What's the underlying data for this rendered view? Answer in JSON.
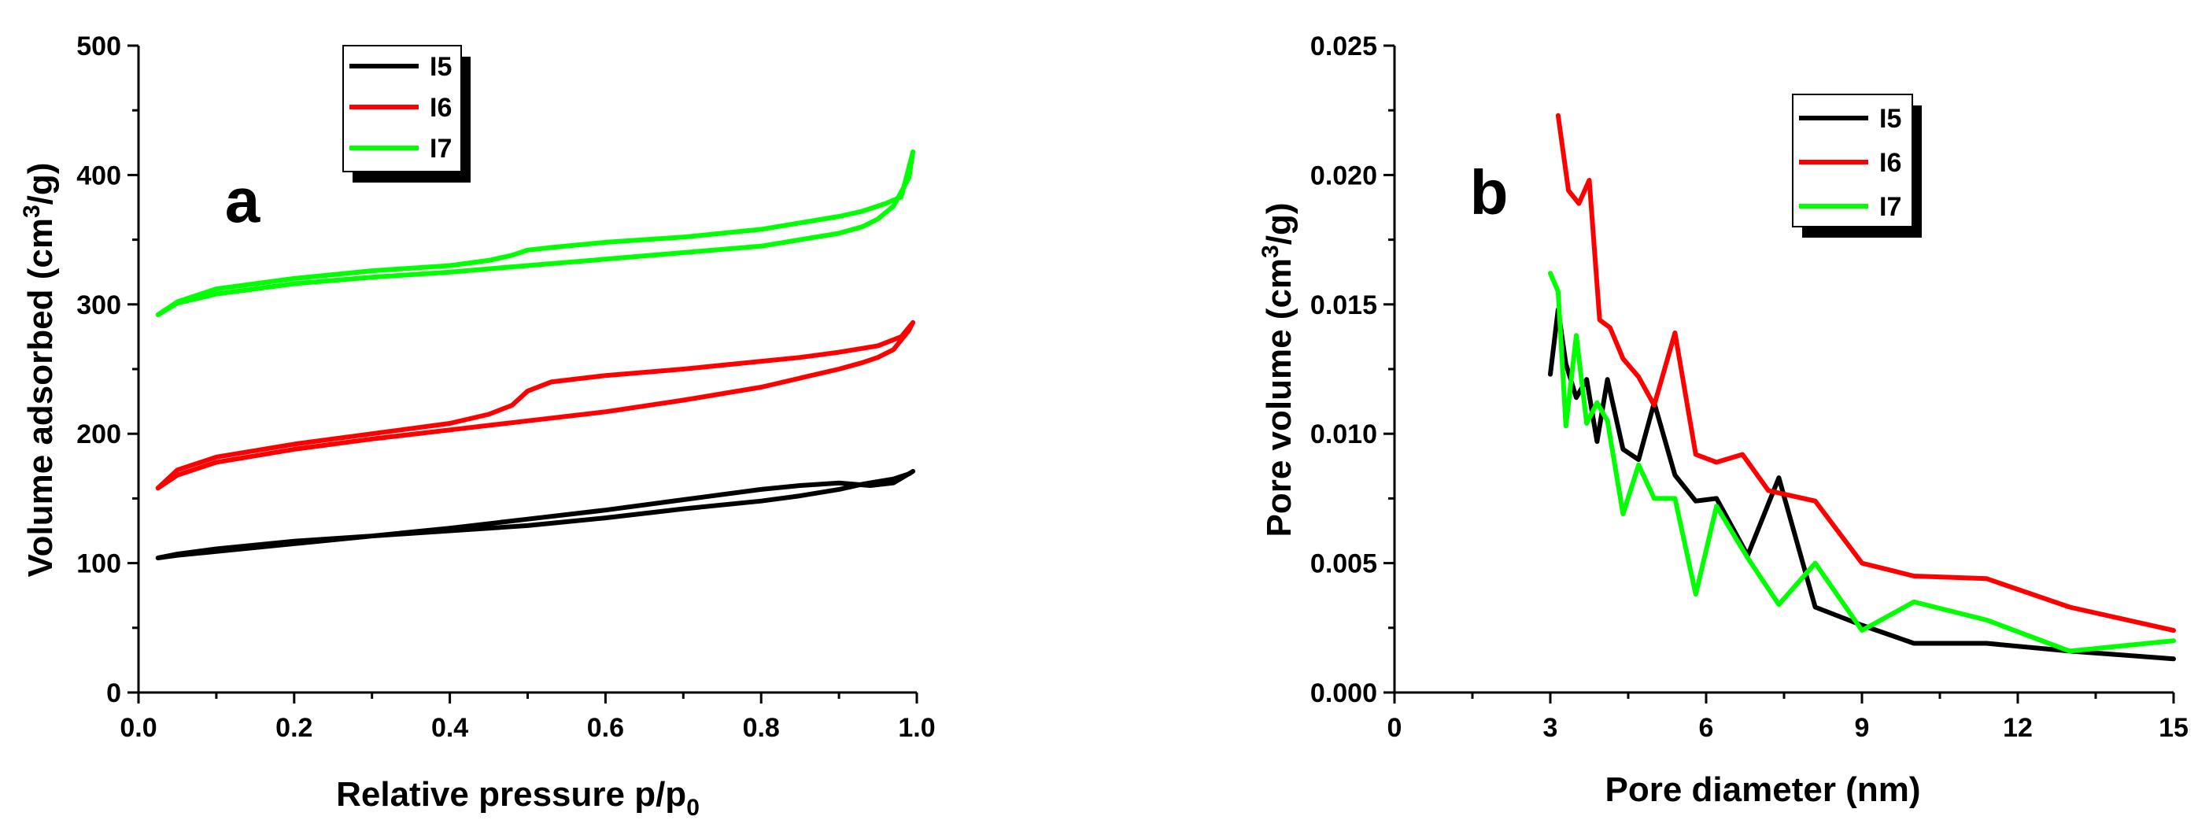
{
  "chart_data": [
    {
      "id": "a",
      "type": "line",
      "panel_label": "a",
      "xlabel_main": "Relative pressure p/p",
      "xlabel_sub": "0",
      "ylabel_pre": "Volume adsorbed (cm",
      "ylabel_sup": "3",
      "ylabel_post": "/g)",
      "xlim": [
        0.0,
        1.0
      ],
      "ylim": [
        0,
        500
      ],
      "xticks": [
        0.0,
        0.2,
        0.4,
        0.6,
        0.8,
        1.0
      ],
      "xtick_labels": [
        "0.0",
        "0.2",
        "0.4",
        "0.6",
        "0.8",
        "1.0"
      ],
      "yticks": [
        0,
        100,
        200,
        300,
        400,
        500
      ],
      "ytick_labels": [
        "0",
        "100",
        "200",
        "300",
        "400",
        "500"
      ],
      "legend_position": "top-left",
      "series": [
        {
          "name": "I5",
          "color": "#000000",
          "x": [
            0.025,
            0.05,
            0.1,
            0.2,
            0.3,
            0.4,
            0.5,
            0.6,
            0.7,
            0.8,
            0.85,
            0.9,
            0.93,
            0.95,
            0.97,
            0.99,
            0.995,
            0.97,
            0.94,
            0.9,
            0.85,
            0.8,
            0.7,
            0.6,
            0.5,
            0.4,
            0.3,
            0.2,
            0.1,
            0.05,
            0.025
          ],
          "y": [
            104,
            107,
            111,
            117,
            121,
            125,
            129,
            135,
            142,
            148,
            152,
            157,
            161,
            163,
            165,
            169,
            171,
            162,
            160,
            162,
            160,
            157,
            149,
            141,
            134,
            127,
            121,
            115,
            109,
            106,
            104
          ]
        },
        {
          "name": "I6",
          "color": "#ff0000",
          "x": [
            0.025,
            0.05,
            0.1,
            0.2,
            0.3,
            0.4,
            0.5,
            0.6,
            0.7,
            0.8,
            0.85,
            0.9,
            0.93,
            0.95,
            0.97,
            0.99,
            0.995,
            0.98,
            0.95,
            0.9,
            0.85,
            0.8,
            0.7,
            0.6,
            0.53,
            0.5,
            0.48,
            0.45,
            0.4,
            0.3,
            0.2,
            0.1,
            0.05,
            0.025
          ],
          "y": [
            158,
            168,
            178,
            188,
            196,
            203,
            210,
            217,
            226,
            236,
            243,
            250,
            255,
            259,
            265,
            280,
            286,
            275,
            268,
            263,
            259,
            256,
            250,
            245,
            240,
            233,
            222,
            215,
            208,
            200,
            192,
            182,
            172,
            158
          ]
        },
        {
          "name": "I7",
          "color": "#00ff00",
          "x": [
            0.025,
            0.05,
            0.1,
            0.2,
            0.3,
            0.4,
            0.5,
            0.6,
            0.7,
            0.8,
            0.85,
            0.9,
            0.93,
            0.95,
            0.97,
            0.99,
            0.995,
            0.98,
            0.96,
            0.93,
            0.9,
            0.85,
            0.8,
            0.7,
            0.6,
            0.53,
            0.5,
            0.48,
            0.45,
            0.4,
            0.3,
            0.2,
            0.1,
            0.05,
            0.025
          ],
          "y": [
            292,
            301,
            308,
            316,
            321,
            325,
            330,
            335,
            340,
            345,
            350,
            355,
            360,
            366,
            376,
            398,
            418,
            383,
            378,
            372,
            368,
            363,
            358,
            352,
            348,
            344,
            342,
            338,
            334,
            330,
            326,
            320,
            312,
            302,
            292
          ]
        }
      ]
    },
    {
      "id": "b",
      "type": "line",
      "panel_label": "b",
      "xlabel_main": "Pore diameter (nm)",
      "ylabel_pre": "Pore volume (cm",
      "ylabel_sup": "3",
      "ylabel_post": "/g)",
      "xlim": [
        0,
        15
      ],
      "ylim": [
        0.0,
        0.025
      ],
      "xticks": [
        0,
        3,
        6,
        9,
        12,
        15
      ],
      "xtick_labels": [
        "0",
        "3",
        "6",
        "9",
        "12",
        "15"
      ],
      "yticks": [
        0.0,
        0.005,
        0.01,
        0.015,
        0.02,
        0.025
      ],
      "ytick_labels": [
        "0.000",
        "0.005",
        "0.010",
        "0.015",
        "0.020",
        "0.025"
      ],
      "legend_position": "top-center",
      "series": [
        {
          "name": "I5",
          "color": "#000000",
          "x": [
            3.0,
            3.15,
            3.3,
            3.5,
            3.7,
            3.9,
            4.1,
            4.4,
            4.7,
            5.0,
            5.4,
            5.8,
            6.2,
            6.8,
            7.4,
            8.1,
            9.0,
            10.0,
            11.4,
            13.0,
            15.0
          ],
          "y": [
            0.0123,
            0.0148,
            0.0127,
            0.0114,
            0.0121,
            0.0097,
            0.0121,
            0.0094,
            0.009,
            0.0112,
            0.0084,
            0.0074,
            0.0075,
            0.0053,
            0.0083,
            0.0033,
            0.0026,
            0.0019,
            0.0019,
            0.0016,
            0.0013
          ]
        },
        {
          "name": "I6",
          "color": "#ff0000",
          "x": [
            3.15,
            3.35,
            3.55,
            3.75,
            3.95,
            4.15,
            4.4,
            4.7,
            5.0,
            5.4,
            5.8,
            6.2,
            6.7,
            7.2,
            8.1,
            9.0,
            10.0,
            11.4,
            13.0,
            15.0
          ],
          "y": [
            0.0223,
            0.0194,
            0.0189,
            0.0198,
            0.0144,
            0.0141,
            0.0129,
            0.0122,
            0.0111,
            0.0139,
            0.0092,
            0.0089,
            0.0092,
            0.0078,
            0.0074,
            0.005,
            0.0045,
            0.0044,
            0.0033,
            0.0024
          ]
        },
        {
          "name": "I7",
          "color": "#00ff00",
          "x": [
            3.0,
            3.15,
            3.3,
            3.5,
            3.7,
            3.9,
            4.1,
            4.4,
            4.7,
            5.0,
            5.4,
            5.8,
            6.2,
            6.8,
            7.4,
            8.1,
            9.0,
            10.0,
            11.4,
            13.0,
            15.0
          ],
          "y": [
            0.0162,
            0.0155,
            0.0103,
            0.0138,
            0.0104,
            0.0112,
            0.0105,
            0.0069,
            0.0088,
            0.0075,
            0.0075,
            0.0038,
            0.0072,
            0.0052,
            0.0034,
            0.005,
            0.0024,
            0.0035,
            0.0028,
            0.0016,
            0.002
          ]
        }
      ]
    }
  ]
}
